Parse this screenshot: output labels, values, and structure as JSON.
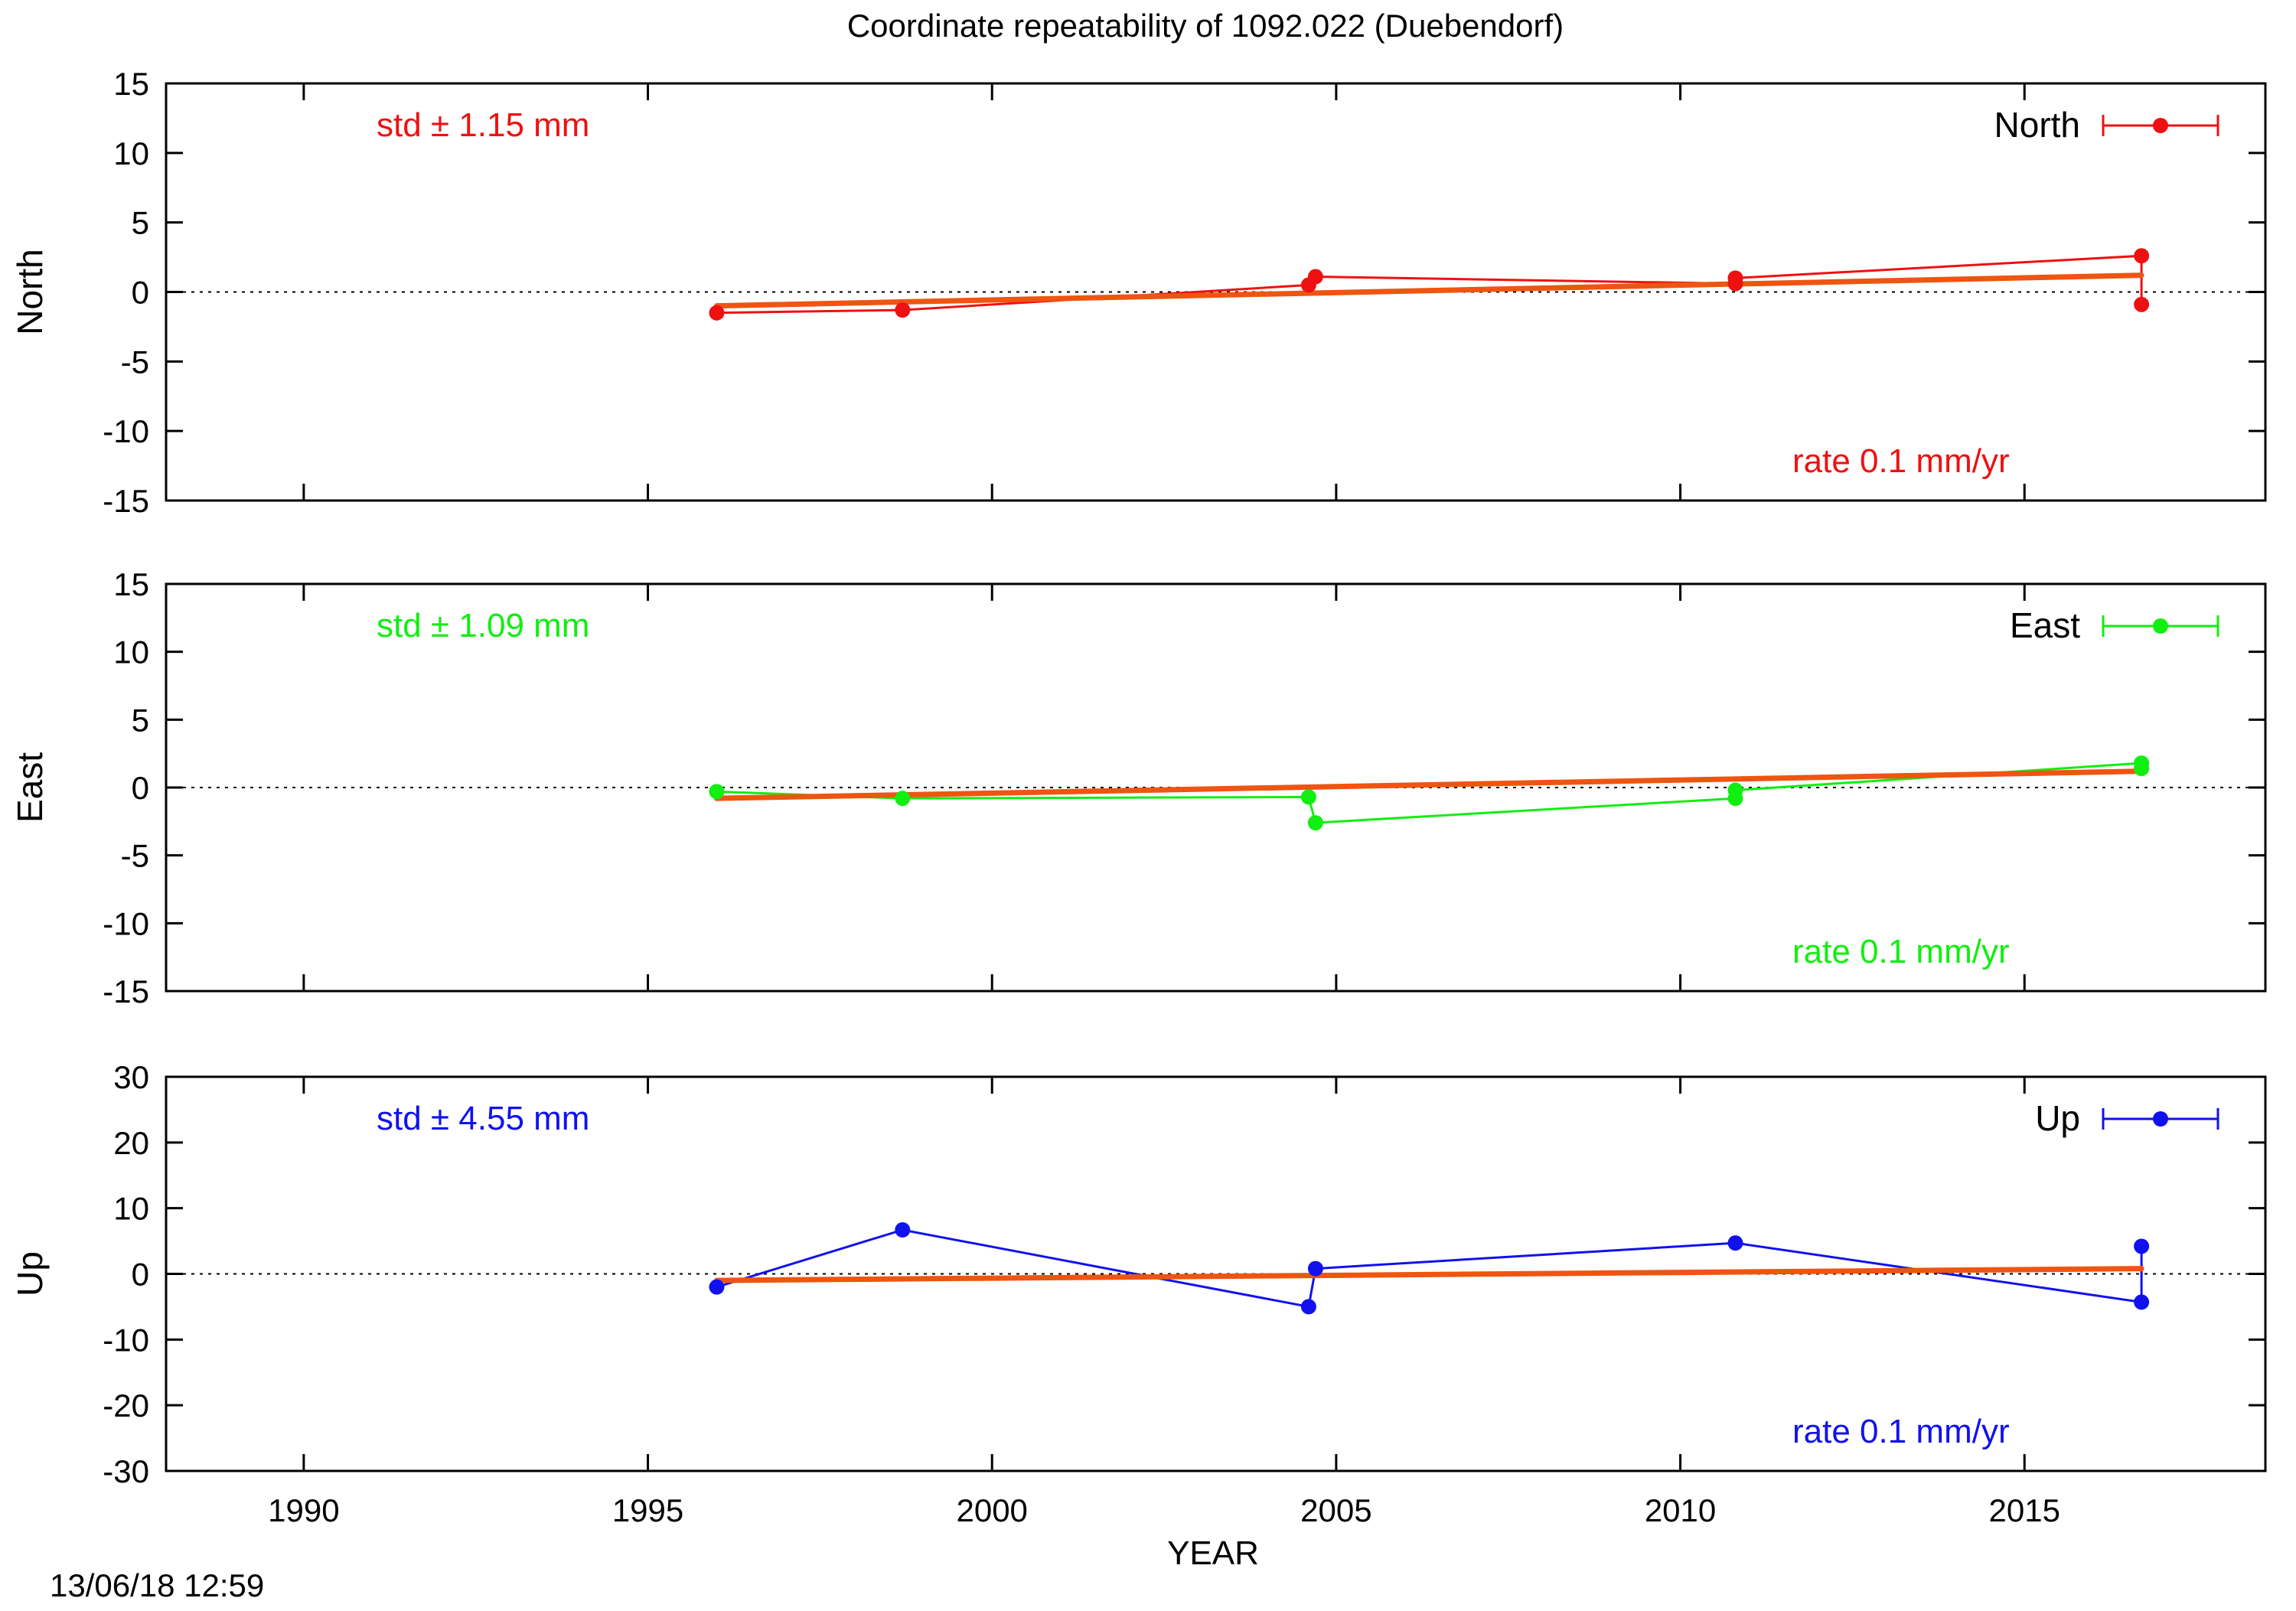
{
  "title": "Coordinate repeatability of 1092.022        (Duebendorf)",
  "timestamp": "13/06/18 12:59",
  "xlabel": "YEAR",
  "trend_color": "#ee5511",
  "chart_data": [
    {
      "type": "line",
      "name": "North",
      "ylabel": "North",
      "legend": "North",
      "legend_position": "top-right",
      "color": "#ee1111",
      "std_label": "std ± 1.15 mm",
      "rate_label": "rate  0.1 mm/yr",
      "xlim": [
        1988,
        2018.5
      ],
      "ylim": [
        -15,
        15
      ],
      "yticks": [
        -15,
        -10,
        -5,
        0,
        5,
        10,
        15
      ],
      "xticks": [
        1990,
        1995,
        2000,
        2005,
        2010,
        2015
      ],
      "zero_line": true,
      "x": [
        1996.0,
        1998.7,
        2004.6,
        2004.7,
        2010.8,
        2010.8,
        2016.7,
        2016.7
      ],
      "y": [
        -1.5,
        -1.3,
        0.5,
        1.1,
        0.6,
        1.0,
        2.6,
        -0.9
      ],
      "trend": {
        "x": [
          1996.0,
          2016.7
        ],
        "y": [
          -1.0,
          1.2
        ]
      }
    },
    {
      "type": "line",
      "name": "East",
      "ylabel": "East",
      "legend": "East",
      "legend_position": "top-right",
      "color": "#11ee11",
      "std_label": "std ± 1.09 mm",
      "rate_label": "rate  0.1 mm/yr",
      "xlim": [
        1988,
        2018.5
      ],
      "ylim": [
        -15,
        15
      ],
      "yticks": [
        -15,
        -10,
        -5,
        0,
        5,
        10,
        15
      ],
      "xticks": [
        1990,
        1995,
        2000,
        2005,
        2010,
        2015
      ],
      "zero_line": true,
      "x": [
        1996.0,
        1998.7,
        2004.6,
        2004.7,
        2010.8,
        2010.8,
        2016.7,
        2016.7
      ],
      "y": [
        -0.3,
        -0.8,
        -0.7,
        -2.6,
        -0.8,
        -0.2,
        1.8,
        1.4
      ],
      "trend": {
        "x": [
          1996.0,
          2016.7
        ],
        "y": [
          -0.8,
          1.2
        ]
      }
    },
    {
      "type": "line",
      "name": "Up",
      "ylabel": "Up",
      "legend": "Up",
      "legend_position": "top-right",
      "color": "#1111ee",
      "std_label": "std ± 4.55 mm",
      "rate_label": "rate  0.1 mm/yr",
      "xlim": [
        1988,
        2018.5
      ],
      "ylim": [
        -30,
        30
      ],
      "yticks": [
        -30,
        -20,
        -10,
        0,
        10,
        20,
        30
      ],
      "xticks": [
        1990,
        1995,
        2000,
        2005,
        2010,
        2015
      ],
      "zero_line": true,
      "x": [
        1996.0,
        1998.7,
        2004.6,
        2004.7,
        2010.8,
        2016.7,
        2016.7
      ],
      "y": [
        -2.0,
        6.7,
        -5.0,
        0.8,
        4.7,
        -4.3,
        4.2
      ],
      "trend": {
        "x": [
          1996.0,
          2016.7
        ],
        "y": [
          -1.0,
          0.8
        ]
      }
    }
  ]
}
